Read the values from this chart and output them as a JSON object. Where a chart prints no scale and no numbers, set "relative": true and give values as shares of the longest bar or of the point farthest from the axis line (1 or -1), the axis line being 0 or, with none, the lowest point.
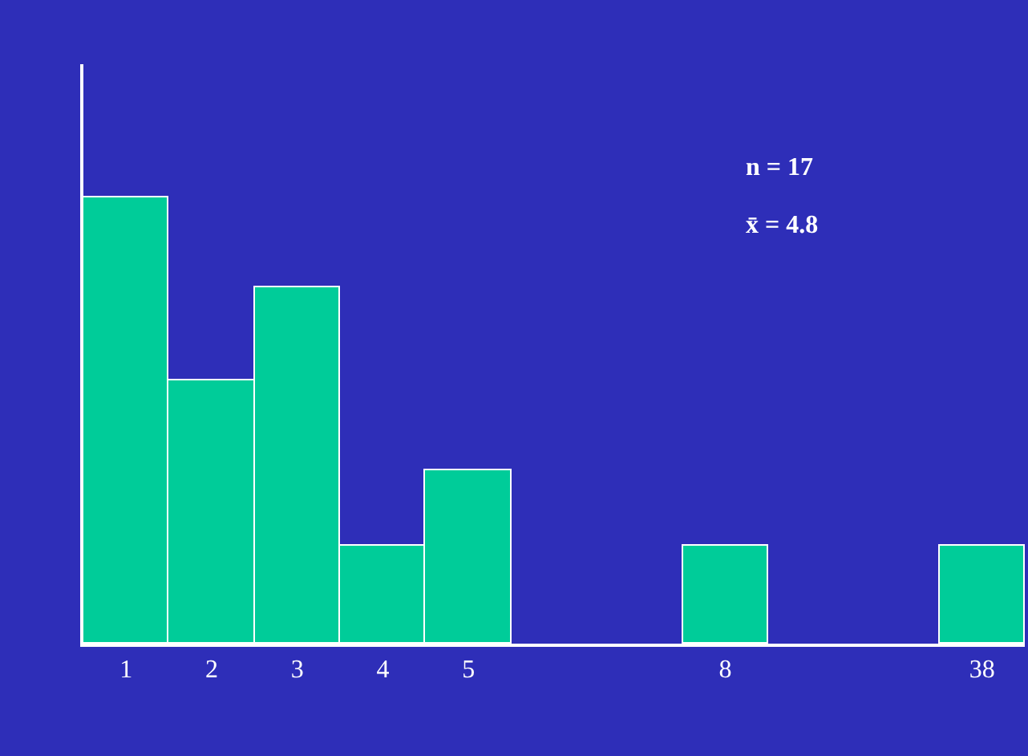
{
  "chart_data": {
    "type": "bar",
    "relative": true,
    "categories": [
      "1",
      "2",
      "3",
      "4",
      "5",
      null,
      null,
      "8",
      null,
      null,
      "38"
    ],
    "values": [
      1,
      0.59,
      0.8,
      0.22,
      0.39,
      null,
      null,
      0.22,
      null,
      null,
      0.22
    ],
    "color": "#00cc99",
    "annotations": [
      "n = 17",
      "x̄ = 4.8"
    ],
    "grid": false,
    "legend": false
  }
}
